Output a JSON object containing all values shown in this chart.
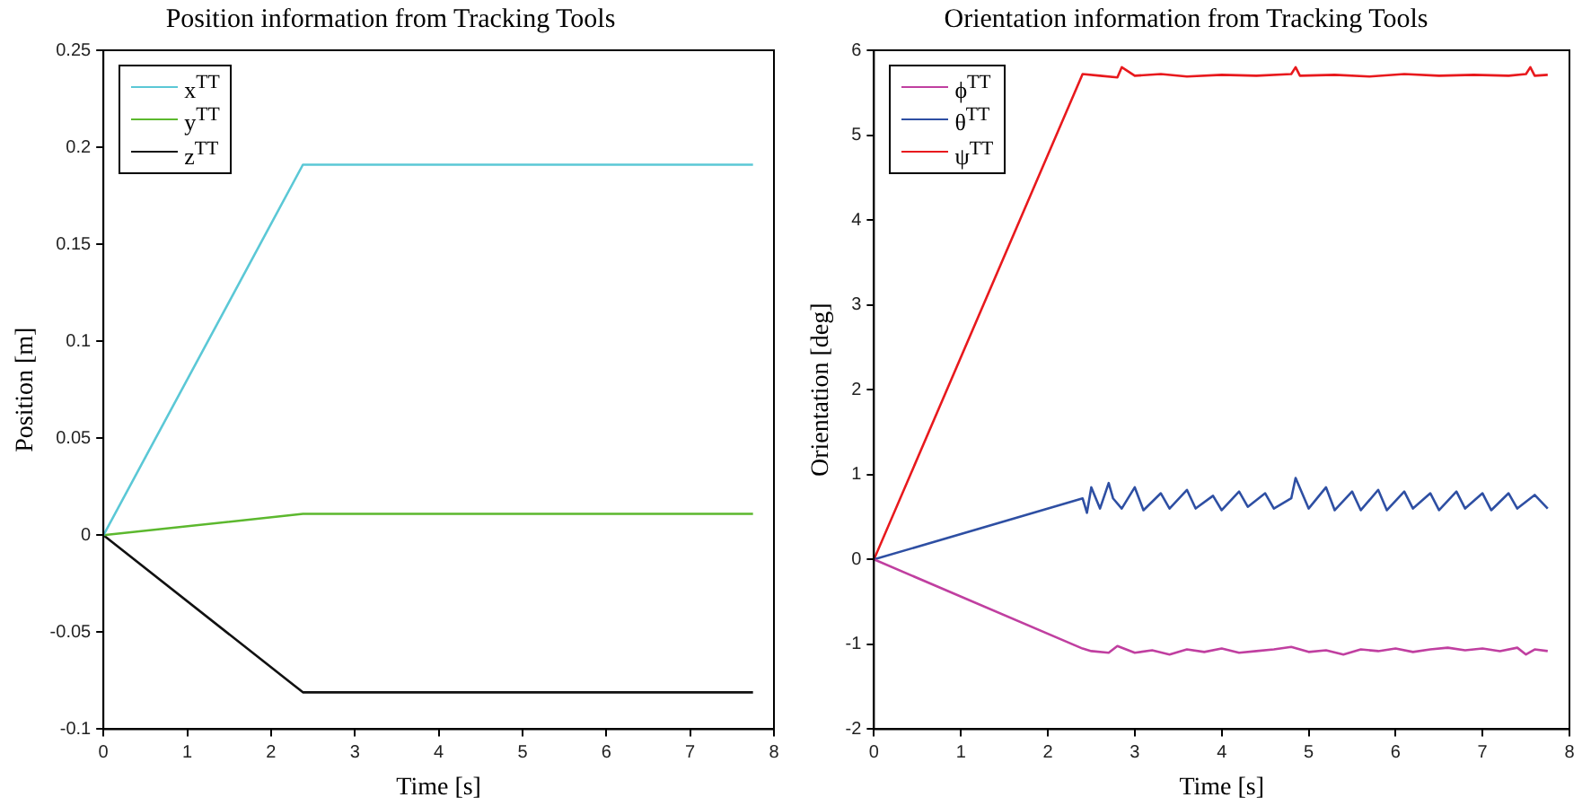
{
  "chart_data": [
    {
      "type": "line",
      "title": "Position information from Tracking Tools",
      "xlabel": "Time [s]",
      "ylabel": "Position [m]",
      "xlim": [
        0,
        8
      ],
      "xticks": [
        0,
        1,
        2,
        3,
        4,
        5,
        6,
        7,
        8
      ],
      "ylim": [
        -0.1,
        0.25
      ],
      "yticks": [
        -0.1,
        -0.05,
        0,
        0.05,
        0.1,
        0.15,
        0.2,
        0.25
      ],
      "grid": false,
      "legend": "top left",
      "marker": "none",
      "line_style": "solid",
      "series": [
        {
          "name": "x$^{TT}$",
          "color": "#5bc8d6",
          "x": [
            0,
            2.38,
            7.75
          ],
          "values": [
            0,
            0.191,
            0.191
          ]
        },
        {
          "name": "y$^{TT}$",
          "color": "#5cb82e",
          "x": [
            0,
            2.38,
            7.75
          ],
          "values": [
            0,
            0.011,
            0.011
          ]
        },
        {
          "name": "z$^{TT}$",
          "color": "#111111",
          "x": [
            0,
            2.38,
            7.75
          ],
          "values": [
            0,
            -0.081,
            -0.081
          ]
        }
      ]
    },
    {
      "type": "line",
      "title": "Orientation information from Tracking Tools",
      "xlabel": "Time [s]",
      "ylabel": "Orientation [deg]",
      "xlim": [
        0,
        8
      ],
      "xticks": [
        0,
        1,
        2,
        3,
        4,
        5,
        6,
        7,
        8
      ],
      "ylim": [
        -2,
        6
      ],
      "yticks": [
        -2,
        -1,
        0,
        1,
        2,
        3,
        4,
        5,
        6
      ],
      "grid": false,
      "legend": "top left",
      "marker": "none",
      "line_style": "solid",
      "series": [
        {
          "name": "ϕ$^{TT}$",
          "color": "#c03fa0",
          "x": [
            0,
            2.4,
            2.5,
            2.7,
            2.8,
            3.0,
            3.2,
            3.4,
            3.6,
            3.8,
            4.0,
            4.2,
            4.4,
            4.6,
            4.8,
            5.0,
            5.2,
            5.4,
            5.6,
            5.8,
            6.0,
            6.2,
            6.4,
            6.6,
            6.8,
            7.0,
            7.2,
            7.4,
            7.5,
            7.6,
            7.75
          ],
          "values": [
            0,
            -1.05,
            -1.08,
            -1.1,
            -1.02,
            -1.1,
            -1.07,
            -1.12,
            -1.06,
            -1.09,
            -1.05,
            -1.1,
            -1.08,
            -1.06,
            -1.03,
            -1.09,
            -1.07,
            -1.12,
            -1.06,
            -1.08,
            -1.05,
            -1.09,
            -1.06,
            -1.04,
            -1.07,
            -1.05,
            -1.08,
            -1.04,
            -1.12,
            -1.06,
            -1.08
          ]
        },
        {
          "name": "θ$^{TT}$",
          "color": "#2e4fa3",
          "x": [
            0,
            2.4,
            2.45,
            2.5,
            2.6,
            2.7,
            2.75,
            2.85,
            3.0,
            3.1,
            3.3,
            3.4,
            3.6,
            3.7,
            3.9,
            4.0,
            4.2,
            4.3,
            4.5,
            4.6,
            4.8,
            4.85,
            5.0,
            5.2,
            5.3,
            5.5,
            5.6,
            5.8,
            5.9,
            6.1,
            6.2,
            6.4,
            6.5,
            6.7,
            6.8,
            7.0,
            7.1,
            7.3,
            7.4,
            7.6,
            7.75
          ],
          "values": [
            0,
            0.72,
            0.55,
            0.85,
            0.6,
            0.9,
            0.72,
            0.6,
            0.85,
            0.58,
            0.78,
            0.6,
            0.82,
            0.6,
            0.75,
            0.58,
            0.8,
            0.62,
            0.78,
            0.6,
            0.72,
            0.96,
            0.6,
            0.85,
            0.58,
            0.8,
            0.58,
            0.82,
            0.58,
            0.8,
            0.6,
            0.78,
            0.58,
            0.8,
            0.6,
            0.78,
            0.58,
            0.78,
            0.6,
            0.76,
            0.6
          ]
        },
        {
          "name": "ψ$^{TT}$",
          "color": "#e8191d",
          "x": [
            0,
            2.4,
            2.6,
            2.8,
            2.85,
            3.0,
            3.3,
            3.6,
            4.0,
            4.4,
            4.8,
            4.85,
            4.9,
            5.3,
            5.7,
            6.1,
            6.5,
            6.9,
            7.3,
            7.5,
            7.55,
            7.6,
            7.75
          ],
          "values": [
            0,
            5.72,
            5.7,
            5.68,
            5.8,
            5.7,
            5.72,
            5.69,
            5.71,
            5.7,
            5.72,
            5.8,
            5.7,
            5.71,
            5.69,
            5.72,
            5.7,
            5.71,
            5.7,
            5.72,
            5.8,
            5.7,
            5.71
          ]
        }
      ]
    }
  ]
}
